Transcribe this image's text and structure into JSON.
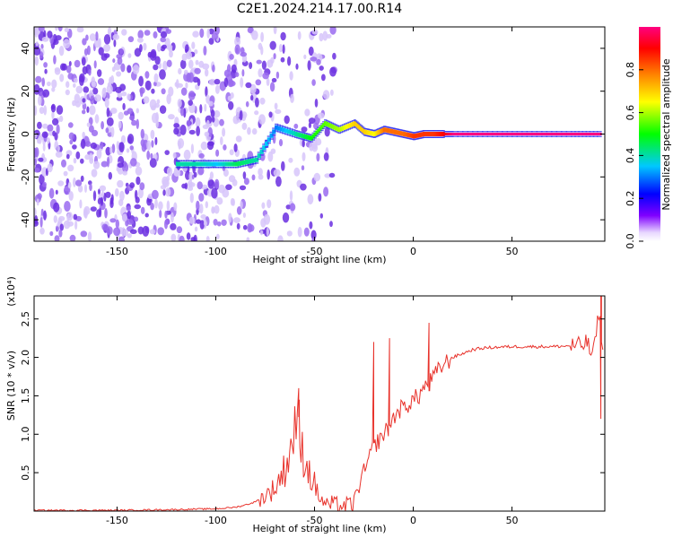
{
  "title": "C2E1.2024.214.17.00.R14",
  "colors": {
    "line": "#e8322b",
    "blob_low": "#c9b3f2",
    "blob_mid": "#8b4fe8",
    "blob_high": "#5a1fd6",
    "axis": "#000000"
  },
  "chart_data": [
    {
      "type": "heatmap",
      "xlabel": "Height of straight line (km)",
      "ylabel": "Frequency (Hz)",
      "xlim": [
        -192,
        97
      ],
      "ylim": [
        -50,
        50
      ],
      "x_ticks": [
        -150,
        -100,
        -50,
        0,
        50
      ],
      "x_tick_labels": [
        "-150",
        "-100",
        "-50",
        "0",
        "50"
      ],
      "y_ticks": [
        -40,
        -20,
        0,
        20,
        40
      ],
      "y_tick_labels": [
        "-40",
        "-20",
        "0",
        "20",
        "40"
      ],
      "colorbar": {
        "label": "Normalized spectral amplitude",
        "range": [
          0,
          1
        ],
        "ticks": [
          0.0,
          0.2,
          0.4,
          0.6,
          0.8
        ],
        "tick_labels": [
          "0.0",
          "0.2",
          "0.4",
          "0.6",
          "0.8"
        ],
        "colormap": [
          "#ffffff",
          "#7f00ff",
          "#0000ff",
          "#00c8ff",
          "#00ff00",
          "#ffff00",
          "#ff8000",
          "#ff0000",
          "#ff0080"
        ]
      },
      "ridge": {
        "x": [
          -120,
          -110,
          -100,
          -90,
          -80,
          -70,
          -60,
          -52,
          -45,
          -38,
          -30,
          -25,
          -20,
          -15,
          -10,
          -5,
          0,
          5,
          10,
          15,
          20,
          40,
          60,
          80,
          95
        ],
        "freq": [
          -14,
          -14,
          -14,
          -14,
          -12,
          3,
          0,
          -2,
          5,
          2,
          5,
          1,
          0,
          2,
          1,
          0,
          -1,
          0,
          0,
          0,
          0,
          0,
          0,
          0,
          0
        ],
        "amplitude": [
          0.4,
          0.4,
          0.35,
          0.45,
          0.4,
          0.3,
          0.4,
          0.5,
          0.55,
          0.6,
          0.7,
          0.7,
          0.65,
          0.8,
          0.8,
          0.8,
          0.85,
          0.85,
          0.85,
          0.9,
          1.0,
          1.0,
          1.0,
          1.0,
          1.0
        ]
      },
      "noise_region": {
        "x_range": [
          -192,
          -60
        ],
        "freq_range": [
          -50,
          50
        ],
        "amplitude_range": [
          0.02,
          0.15
        ]
      }
    },
    {
      "type": "line",
      "xlabel": "Height of straight line (km)",
      "ylabel": "SNR (10 * v/v)",
      "y_multiplier": "(x10⁴)",
      "xlim": [
        -192,
        97
      ],
      "ylim": [
        0,
        2.8
      ],
      "x_ticks": [
        -150,
        -100,
        -50,
        0,
        50
      ],
      "x_tick_labels": [
        "-150",
        "-100",
        "-50",
        "0",
        "50"
      ],
      "y_ticks": [
        0.5,
        1.0,
        1.5,
        2.0,
        2.5
      ],
      "y_tick_labels": [
        "0.5",
        "1.0",
        "1.5",
        "2.0",
        "2.5"
      ],
      "series": [
        {
          "x": [
            -192,
            -150,
            -120,
            -100,
            -90,
            -85,
            -80,
            -75,
            -70,
            -65,
            -62,
            -60,
            -58,
            -55,
            -52,
            -50,
            -48,
            -45,
            -40,
            -35,
            -30,
            -28,
            -25,
            -22,
            -20,
            -18,
            -15,
            -12,
            -10,
            -8,
            -5,
            -2,
            0,
            3,
            5,
            8,
            10,
            12,
            15,
            20,
            25,
            30,
            35,
            40,
            50,
            60,
            70,
            80,
            85,
            88,
            90,
            92,
            94,
            96
          ],
          "values": [
            0.01,
            0.01,
            0.02,
            0.03,
            0.05,
            0.08,
            0.12,
            0.2,
            0.3,
            0.55,
            0.8,
            1.2,
            0.9,
            0.7,
            0.45,
            0.35,
            0.2,
            0.1,
            0.08,
            0.06,
            0.1,
            0.3,
            0.5,
            0.7,
            0.85,
            0.9,
            1.0,
            1.1,
            1.2,
            1.3,
            1.35,
            1.4,
            1.45,
            1.5,
            1.6,
            1.65,
            1.75,
            1.8,
            1.9,
            2.0,
            2.05,
            2.1,
            2.12,
            2.13,
            2.14,
            2.14,
            2.14,
            2.15,
            2.15,
            2.2,
            2.05,
            2.15,
            2.6,
            2.1
          ],
          "spikes": [
            {
              "x": -58,
              "values": [
                1.45,
                1.6
              ]
            },
            {
              "x": -12,
              "values": [
                2.25
              ]
            },
            {
              "x": -20,
              "values": [
                2.2
              ]
            },
            {
              "x": 8,
              "values": [
                2.45
              ]
            },
            {
              "x": 95,
              "values": [
                2.8,
                1.2
              ]
            }
          ]
        }
      ]
    }
  ]
}
